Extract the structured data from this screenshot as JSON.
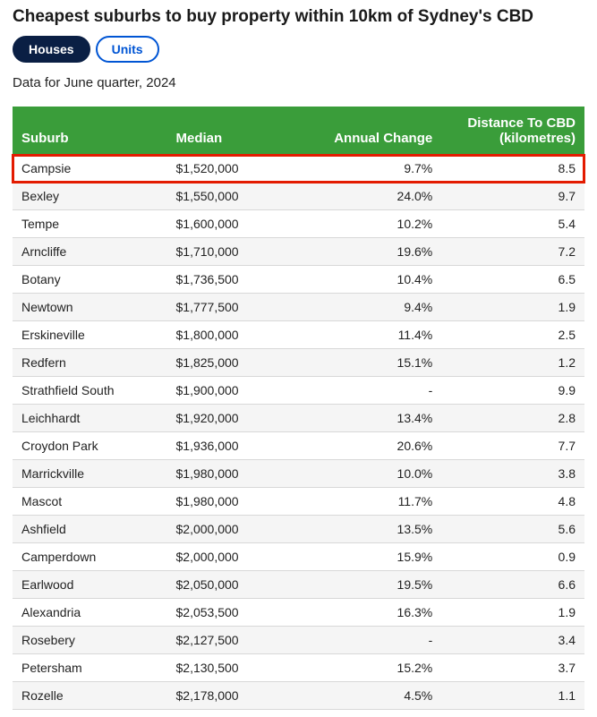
{
  "title": "Cheapest suburbs to buy property within 10km of Sydney's CBD",
  "tabs": [
    {
      "label": "Houses",
      "active": true
    },
    {
      "label": "Units",
      "active": false
    }
  ],
  "subtitle": "Data for June quarter, 2024",
  "table": {
    "columns": [
      {
        "label": "Suburb",
        "align": "left"
      },
      {
        "label": "Median",
        "align": "left"
      },
      {
        "label": "Annual Change",
        "align": "right"
      },
      {
        "label": "Distance To CBD (kilometres)",
        "align": "right"
      }
    ],
    "highlight_row_index": 0,
    "header_bg": "#3a9d3a",
    "header_fg": "#ffffff",
    "row_alt_bg": "#f5f5f5",
    "highlight_border": "#e31b00",
    "rows": [
      {
        "suburb": "Campsie",
        "median": "$1,520,000",
        "change": "9.7%",
        "distance": "8.5"
      },
      {
        "suburb": "Bexley",
        "median": "$1,550,000",
        "change": "24.0%",
        "distance": "9.7"
      },
      {
        "suburb": "Tempe",
        "median": "$1,600,000",
        "change": "10.2%",
        "distance": "5.4"
      },
      {
        "suburb": "Arncliffe",
        "median": "$1,710,000",
        "change": "19.6%",
        "distance": "7.2"
      },
      {
        "suburb": "Botany",
        "median": "$1,736,500",
        "change": "10.4%",
        "distance": "6.5"
      },
      {
        "suburb": "Newtown",
        "median": "$1,777,500",
        "change": "9.4%",
        "distance": "1.9"
      },
      {
        "suburb": "Erskineville",
        "median": "$1,800,000",
        "change": "11.4%",
        "distance": "2.5"
      },
      {
        "suburb": "Redfern",
        "median": "$1,825,000",
        "change": "15.1%",
        "distance": "1.2"
      },
      {
        "suburb": "Strathfield South",
        "median": "$1,900,000",
        "change": "-",
        "distance": "9.9"
      },
      {
        "suburb": "Leichhardt",
        "median": "$1,920,000",
        "change": "13.4%",
        "distance": "2.8"
      },
      {
        "suburb": "Croydon Park",
        "median": "$1,936,000",
        "change": "20.6%",
        "distance": "7.7"
      },
      {
        "suburb": "Marrickville",
        "median": "$1,980,000",
        "change": "10.0%",
        "distance": "3.8"
      },
      {
        "suburb": "Mascot",
        "median": "$1,980,000",
        "change": "11.7%",
        "distance": "4.8"
      },
      {
        "suburb": "Ashfield",
        "median": "$2,000,000",
        "change": "13.5%",
        "distance": "5.6"
      },
      {
        "suburb": "Camperdown",
        "median": "$2,000,000",
        "change": "15.9%",
        "distance": "0.9"
      },
      {
        "suburb": "Earlwood",
        "median": "$2,050,000",
        "change": "19.5%",
        "distance": "6.6"
      },
      {
        "suburb": "Alexandria",
        "median": "$2,053,500",
        "change": "16.3%",
        "distance": "1.9"
      },
      {
        "suburb": "Rosebery",
        "median": "$2,127,500",
        "change": "-",
        "distance": "3.4"
      },
      {
        "suburb": "Petersham",
        "median": "$2,130,500",
        "change": "15.2%",
        "distance": "3.7"
      },
      {
        "suburb": "Rozelle",
        "median": "$2,178,000",
        "change": "4.5%",
        "distance": "1.1"
      }
    ]
  }
}
